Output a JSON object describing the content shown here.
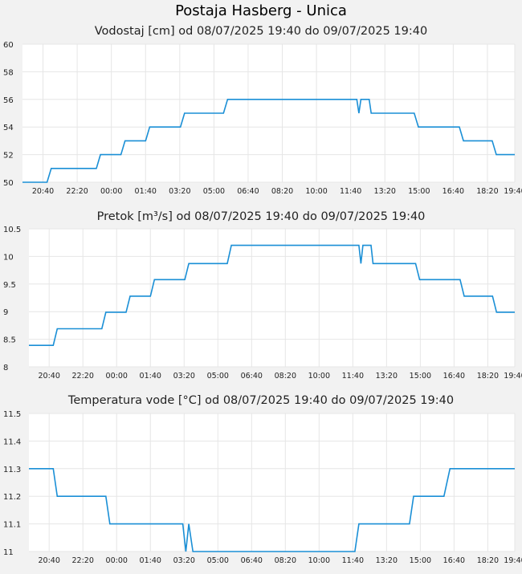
{
  "page_title": "Postaja Hasberg - Unica",
  "chart_data": [
    {
      "type": "line",
      "title": "Vodostaj [cm] od 08/07/2025 19:40 do 09/07/2025 19:40",
      "ylim": [
        50,
        60
      ],
      "yticks": [
        "50",
        "52",
        "54",
        "56",
        "58",
        "60"
      ],
      "xlim": [
        0,
        24
      ],
      "xticks": [
        "20:40",
        "22:20",
        "00:00",
        "01:40",
        "03:20",
        "05:00",
        "06:40",
        "08:20",
        "10:00",
        "11:40",
        "13:20",
        "15:00",
        "16:40",
        "18:20",
        "19:40"
      ],
      "color": "#1a8fd6",
      "x": [
        0,
        1.2,
        1.4,
        3.6,
        3.8,
        4.8,
        5,
        6,
        6.2,
        7.7,
        7.9,
        9.8,
        10,
        11.9,
        12.2,
        13.2,
        13.4,
        16.3,
        16.4,
        16.5,
        16.7,
        16.9,
        17,
        19.1,
        19.3,
        21.3,
        21.5,
        22.9,
        23.1,
        24
      ],
      "y": [
        50,
        50,
        51,
        51,
        52,
        52,
        53,
        53,
        54,
        54,
        55,
        55,
        56,
        56,
        56,
        56,
        56,
        56,
        55,
        56,
        56,
        56,
        55,
        55,
        54,
        54,
        53,
        53,
        52,
        52
      ]
    },
    {
      "type": "line",
      "title": "Pretok [m³/s] od 08/07/2025 19:40 do 09/07/2025 19:40",
      "ylim": [
        8,
        10.5
      ],
      "yticks": [
        "8",
        "8.5",
        "9",
        "9.5",
        "10",
        "10.5"
      ],
      "xlim": [
        0,
        24
      ],
      "xticks": [
        "20:40",
        "22:20",
        "00:00",
        "01:40",
        "03:20",
        "05:00",
        "06:40",
        "08:20",
        "10:00",
        "11:40",
        "13:20",
        "15:00",
        "16:40",
        "18:20",
        "19:40"
      ],
      "color": "#1a8fd6",
      "x": [
        0,
        1.2,
        1.4,
        3.6,
        3.8,
        4.8,
        5,
        6,
        6.2,
        7.7,
        7.9,
        9.8,
        10,
        16.3,
        16.4,
        16.5,
        16.7,
        16.9,
        17,
        19.1,
        19.3,
        21.3,
        21.5,
        22.9,
        23.1,
        24
      ],
      "y": [
        8.39,
        8.39,
        8.69,
        8.69,
        8.99,
        8.99,
        9.28,
        9.28,
        9.58,
        9.58,
        9.87,
        9.87,
        10.2,
        10.2,
        9.87,
        10.2,
        10.2,
        10.2,
        9.87,
        9.87,
        9.58,
        9.58,
        9.28,
        9.28,
        8.99,
        8.99
      ]
    },
    {
      "type": "line",
      "title": "Temperatura vode [°C] od 08/07/2025 19:40 do 09/07/2025 19:40",
      "ylim": [
        11,
        11.5
      ],
      "yticks": [
        "11",
        "11.1",
        "11.2",
        "11.3",
        "11.4",
        "11.5"
      ],
      "xlim": [
        0,
        24
      ],
      "xticks": [
        "20:40",
        "22:20",
        "00:00",
        "01:40",
        "03:20",
        "05:00",
        "06:40",
        "08:20",
        "10:00",
        "11:40",
        "13:20",
        "15:00",
        "16:40",
        "18:20",
        "19:40"
      ],
      "color": "#1a8fd6",
      "x": [
        0,
        1.2,
        1.4,
        3.8,
        4,
        7.6,
        7.75,
        7.9,
        8.1,
        16.1,
        16.3,
        18.8,
        19,
        20.5,
        20.8,
        24
      ],
      "y": [
        11.3,
        11.3,
        11.2,
        11.2,
        11.1,
        11.1,
        11,
        11.1,
        11,
        11,
        11.1,
        11.1,
        11.2,
        11.2,
        11.3,
        11.3
      ]
    }
  ]
}
